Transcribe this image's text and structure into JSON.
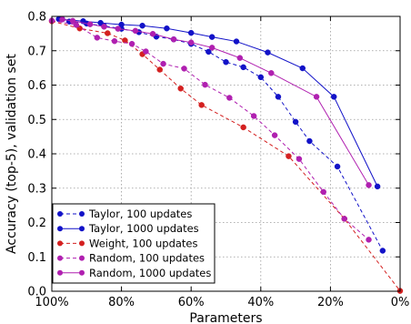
{
  "chart_data": {
    "type": "line",
    "xlabel": "Parameters",
    "ylabel": "Accuracy (top-5), validation set",
    "xlim": [
      100,
      0
    ],
    "ylim": [
      0.0,
      0.8
    ],
    "x_ticks": [
      "100%",
      "80%",
      "60%",
      "40%",
      "20%",
      "0%"
    ],
    "y_ticks": [
      "0.0",
      "0.1",
      "0.2",
      "0.3",
      "0.4",
      "0.5",
      "0.6",
      "0.7",
      "0.8"
    ],
    "grid": true,
    "legend_position": "lower-left",
    "series": [
      {
        "name": "Taylor, 100 updates",
        "color": "#1212c8",
        "line_style": "dashed",
        "x": [
          97,
          95,
          90,
          85,
          80,
          75,
          70,
          65,
          60,
          55,
          50,
          45,
          40,
          35,
          30,
          26,
          18,
          5
        ],
        "y": [
          0.792,
          0.785,
          0.779,
          0.772,
          0.764,
          0.754,
          0.741,
          0.733,
          0.72,
          0.697,
          0.667,
          0.652,
          0.623,
          0.566,
          0.493,
          0.437,
          0.363,
          0.118
        ]
      },
      {
        "name": "Taylor, 1000 updates",
        "color": "#1212c8",
        "line_style": "solid",
        "x": [
          98,
          91,
          86,
          80,
          74,
          67,
          60,
          54,
          47,
          38,
          28,
          19,
          6.5
        ],
        "y": [
          0.792,
          0.786,
          0.781,
          0.776,
          0.773,
          0.765,
          0.752,
          0.74,
          0.727,
          0.695,
          0.649,
          0.566,
          0.305
        ]
      },
      {
        "name": "Weight, 100 updates",
        "color": "#d42020",
        "line_style": "dashed",
        "x": [
          100,
          92,
          84,
          79,
          74,
          69,
          63,
          57,
          45,
          32,
          16,
          0
        ],
        "y": [
          0.786,
          0.765,
          0.751,
          0.73,
          0.69,
          0.645,
          0.59,
          0.542,
          0.477,
          0.393,
          0.211,
          0.001
        ]
      },
      {
        "name": "Random, 100 updates",
        "color": "#b020b0",
        "line_style": "dashed",
        "x": [
          100,
          93,
          87,
          82,
          77,
          73,
          68,
          62,
          56,
          49,
          42,
          36,
          29,
          22,
          16,
          9
        ],
        "y": [
          0.788,
          0.775,
          0.738,
          0.728,
          0.72,
          0.698,
          0.662,
          0.648,
          0.601,
          0.563,
          0.51,
          0.454,
          0.385,
          0.289,
          0.211,
          0.15
        ]
      },
      {
        "name": "Random, 1000 updates",
        "color": "#b020b0",
        "line_style": "solid",
        "x": [
          97,
          94,
          89,
          85,
          81,
          76,
          71,
          65,
          60,
          54,
          46,
          37,
          24,
          9
        ],
        "y": [
          0.791,
          0.787,
          0.777,
          0.77,
          0.764,
          0.758,
          0.749,
          0.733,
          0.724,
          0.709,
          0.679,
          0.635,
          0.566,
          0.309
        ]
      }
    ]
  }
}
